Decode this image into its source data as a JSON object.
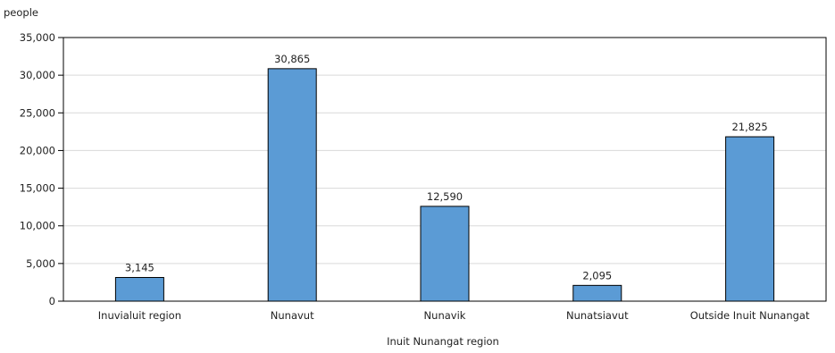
{
  "chart_data": {
    "type": "bar",
    "title": "",
    "ylabel": "people",
    "xlabel": "Inuit Nunangat region",
    "categories": [
      "Inuvialuit region",
      "Nunavut",
      "Nunavik",
      "Nunatsiavut",
      "Outside Inuit Nunangat"
    ],
    "values": [
      3145,
      30865,
      12590,
      2095,
      21825
    ],
    "value_labels": [
      "3,145",
      "30,865",
      "12,590",
      "2,095",
      "21,825"
    ],
    "ylim": [
      0,
      35000
    ],
    "yticks": [
      0,
      5000,
      10000,
      15000,
      20000,
      25000,
      30000,
      35000
    ],
    "ytick_labels": [
      "0",
      "5,000",
      "10,000",
      "15,000",
      "20,000",
      "25,000",
      "30,000",
      "35,000"
    ],
    "grid": true,
    "legend": "none",
    "bar_color": "#5b9bd5",
    "bar_stroke": "#000000",
    "grid_color": "#d9d9d9"
  }
}
